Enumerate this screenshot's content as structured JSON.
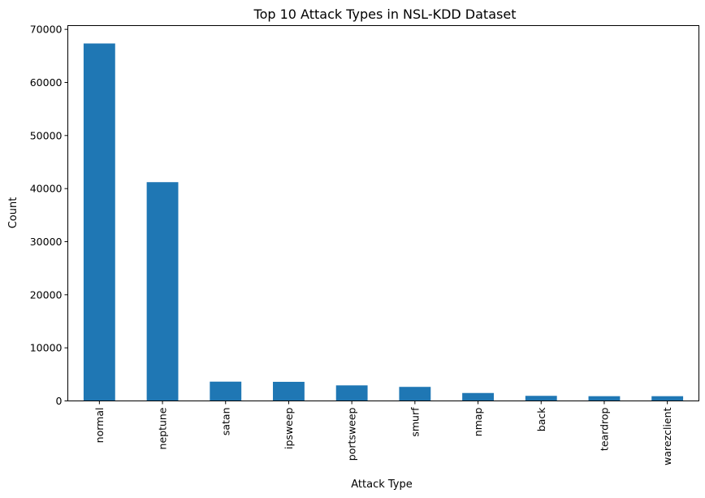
{
  "chart_data": {
    "type": "bar",
    "title": "Top 10 Attack Types in NSL-KDD Dataset",
    "xlabel": "Attack Type",
    "ylabel": "Count",
    "categories": [
      "normal",
      "neptune",
      "satan",
      "ipsweep",
      "portsweep",
      "smurf",
      "nmap",
      "back",
      "teardrop",
      "warezclient"
    ],
    "values": [
      67343,
      41214,
      3633,
      3599,
      2931,
      2646,
      1493,
      956,
      892,
      890
    ],
    "ylim": [
      0,
      70710
    ],
    "yticks": [
      0,
      10000,
      20000,
      30000,
      40000,
      50000,
      60000,
      70000
    ],
    "bar_color": "#1f77b4",
    "grid": false,
    "legend": "none"
  }
}
